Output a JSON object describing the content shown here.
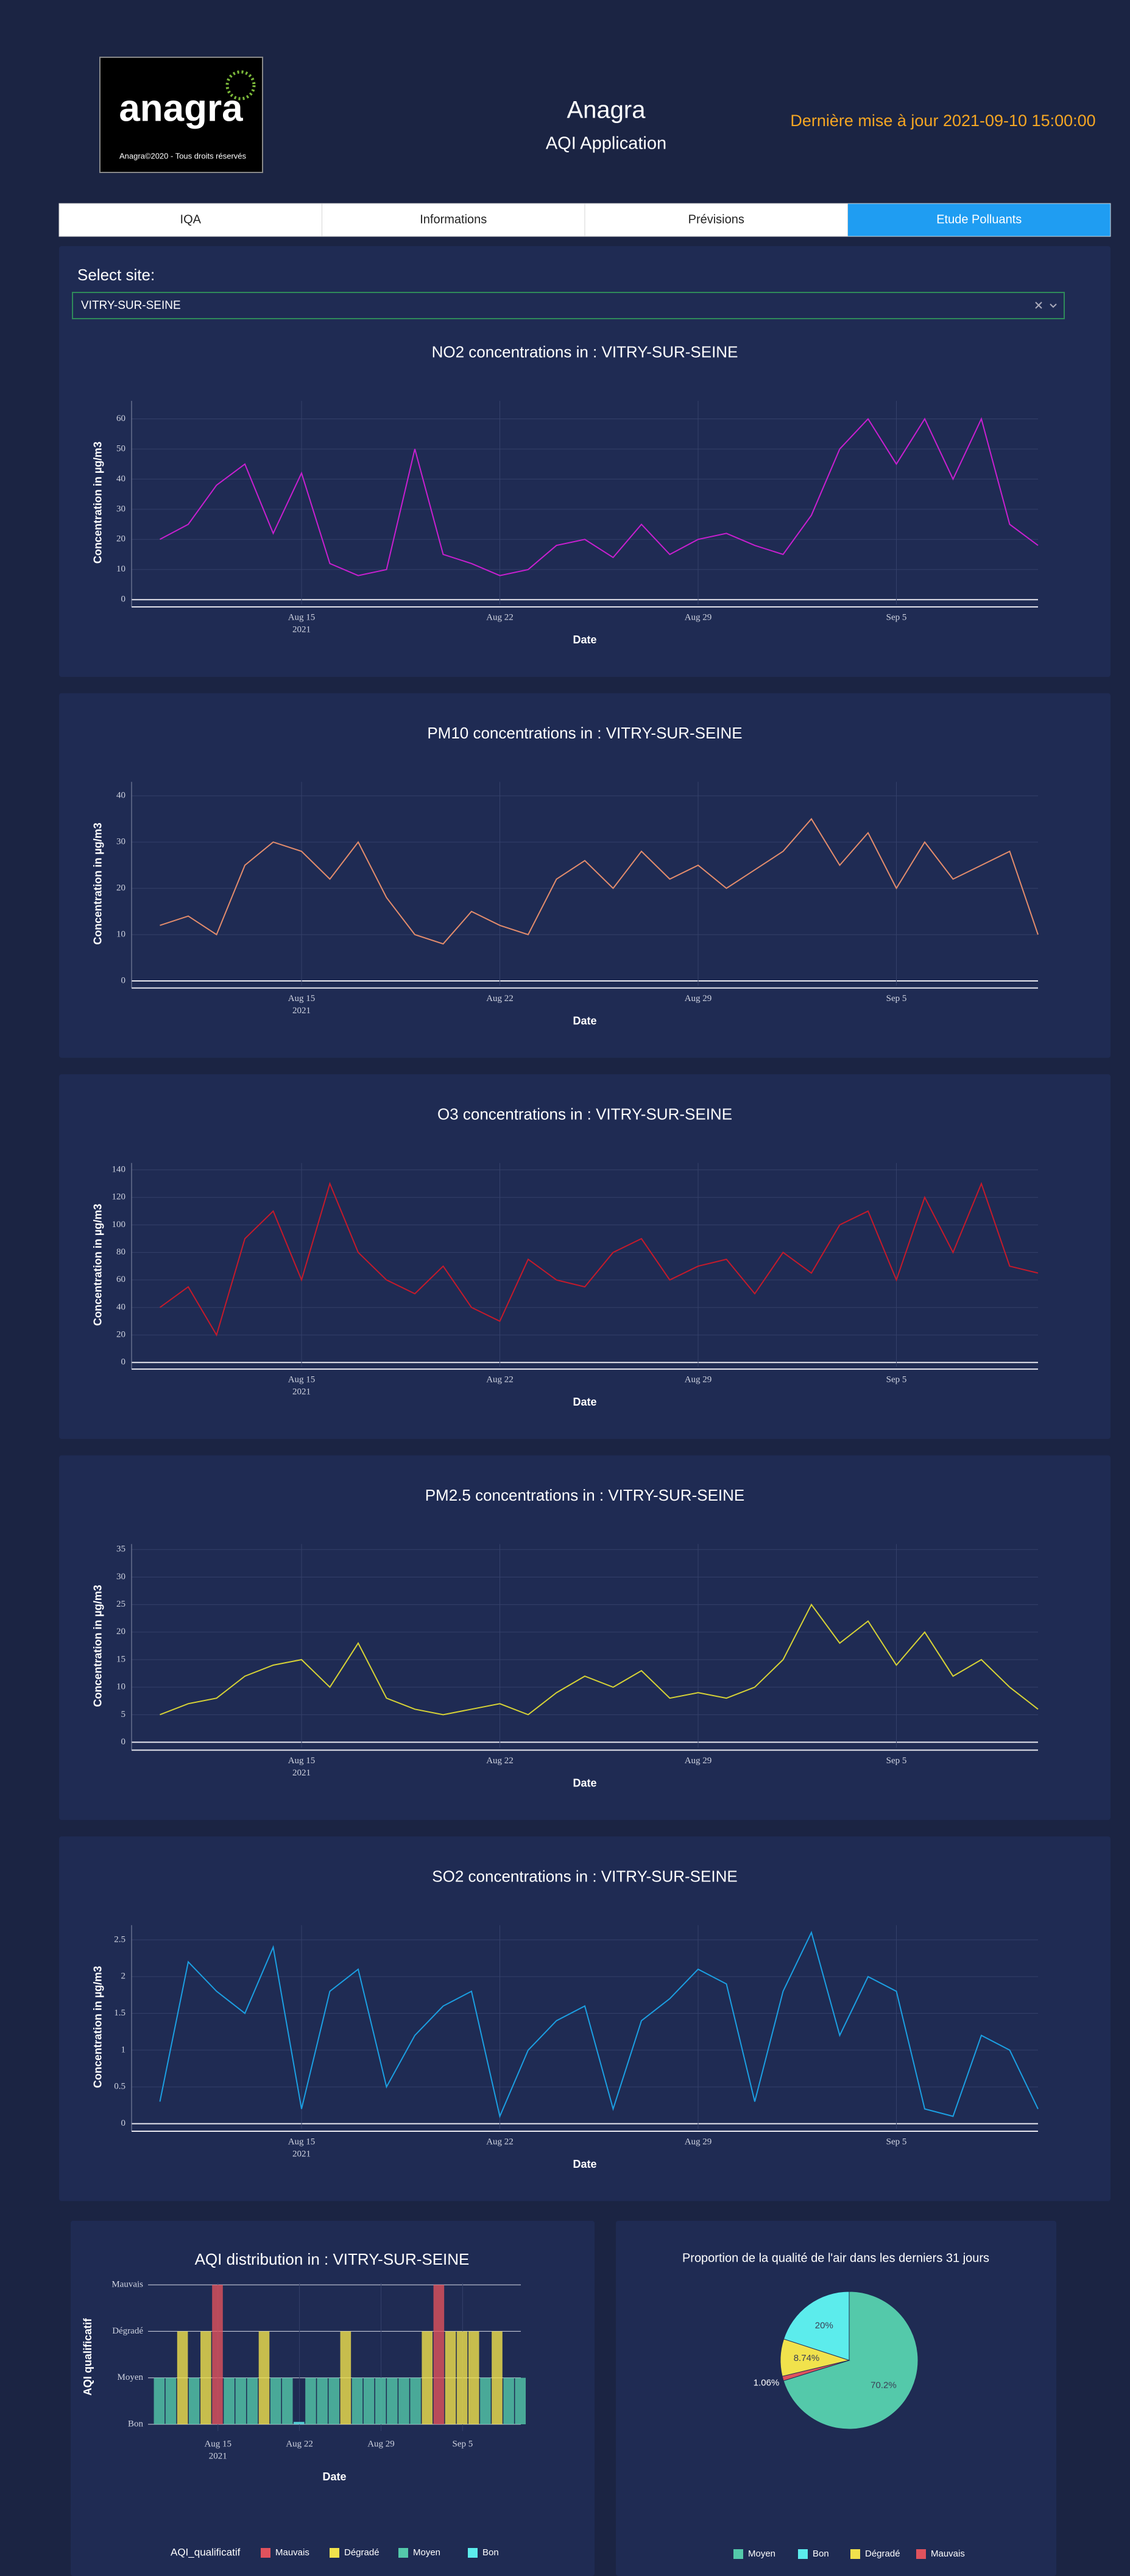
{
  "header": {
    "logo_text": "anagra",
    "logo_caption": "Anagra©2020 - Tous droits réservés",
    "title": "Anagra",
    "subtitle": "AQI Application",
    "last_update": "Dernière mise à jour 2021-09-10 15:00:00"
  },
  "tabs": [
    "IQA",
    "Informations",
    "Prévisions",
    "Etude Polluants"
  ],
  "active_tab": 3,
  "site_selector": {
    "label": "Select site:",
    "value": "VITRY-SUR-SEINE"
  },
  "chart_data": [
    {
      "type": "line",
      "title": "NO2 concentrations in : VITRY-SUR-SEINE",
      "xlabel": "Date",
      "ylabel": "Concentration in µg/m3",
      "color": "#c81fd0",
      "x": [
        "2021-08-10",
        "2021-08-11",
        "2021-08-12",
        "2021-08-13",
        "2021-08-14",
        "2021-08-15",
        "2021-08-16",
        "2021-08-17",
        "2021-08-18",
        "2021-08-19",
        "2021-08-20",
        "2021-08-21",
        "2021-08-22",
        "2021-08-23",
        "2021-08-24",
        "2021-08-25",
        "2021-08-26",
        "2021-08-27",
        "2021-08-28",
        "2021-08-29",
        "2021-08-30",
        "2021-08-31",
        "2021-09-01",
        "2021-09-02",
        "2021-09-03",
        "2021-09-04",
        "2021-09-05",
        "2021-09-06",
        "2021-09-07",
        "2021-09-08",
        "2021-09-09",
        "2021-09-10"
      ],
      "values": [
        20,
        25,
        38,
        45,
        22,
        42,
        12,
        8,
        10,
        50,
        15,
        12,
        8,
        10,
        18,
        20,
        14,
        25,
        15,
        20,
        22,
        18,
        15,
        28,
        50,
        60,
        45,
        60,
        40,
        60,
        25,
        18
      ],
      "xlim": [
        "2021-08-09",
        "2021-09-10"
      ],
      "ylim": [
        -1.6,
        66
      ],
      "xticks": [
        {
          "value": "2021-08-15",
          "label": "Aug 15"
        },
        {
          "value": "2021-08-22",
          "label": "Aug 22"
        },
        {
          "value": "2021-08-29",
          "label": "Aug 29"
        },
        {
          "value": "2021-09-05",
          "label": "Sep 5"
        }
      ],
      "xtick_year": "2021",
      "yticks": [
        0,
        10,
        20,
        30,
        40,
        50,
        60
      ],
      "grid": true
    },
    {
      "type": "line",
      "title": "PM10 concentrations in : VITRY-SUR-SEINE",
      "xlabel": "Date",
      "ylabel": "Concentration in µg/m3",
      "color": "#e38c6c",
      "x": [
        "2021-08-10",
        "2021-08-11",
        "2021-08-12",
        "2021-08-13",
        "2021-08-14",
        "2021-08-15",
        "2021-08-16",
        "2021-08-17",
        "2021-08-18",
        "2021-08-19",
        "2021-08-20",
        "2021-08-21",
        "2021-08-22",
        "2021-08-23",
        "2021-08-24",
        "2021-08-25",
        "2021-08-26",
        "2021-08-27",
        "2021-08-28",
        "2021-08-29",
        "2021-08-30",
        "2021-08-31",
        "2021-09-01",
        "2021-09-02",
        "2021-09-03",
        "2021-09-04",
        "2021-09-05",
        "2021-09-06",
        "2021-09-07",
        "2021-09-08",
        "2021-09-09",
        "2021-09-10"
      ],
      "values": [
        12,
        14,
        10,
        25,
        30,
        28,
        22,
        30,
        18,
        10,
        8,
        15,
        12,
        10,
        22,
        26,
        20,
        28,
        22,
        25,
        20,
        24,
        28,
        35,
        25,
        32,
        20,
        30,
        22,
        25,
        28,
        10
      ],
      "xlim": [
        "2021-08-09",
        "2021-09-10"
      ],
      "ylim": [
        -1,
        43
      ],
      "xticks": [
        {
          "value": "2021-08-15",
          "label": "Aug 15"
        },
        {
          "value": "2021-08-22",
          "label": "Aug 22"
        },
        {
          "value": "2021-08-29",
          "label": "Aug 29"
        },
        {
          "value": "2021-09-05",
          "label": "Sep 5"
        }
      ],
      "xtick_year": "2021",
      "yticks": [
        0,
        10,
        20,
        30,
        40
      ],
      "grid": true
    },
    {
      "type": "line",
      "title": "O3 concentrations in : VITRY-SUR-SEINE",
      "xlabel": "Date",
      "ylabel": "Concentration in µg/m3",
      "color": "#c41a2b",
      "x": [
        "2021-08-10",
        "2021-08-11",
        "2021-08-12",
        "2021-08-13",
        "2021-08-14",
        "2021-08-15",
        "2021-08-16",
        "2021-08-17",
        "2021-08-18",
        "2021-08-19",
        "2021-08-20",
        "2021-08-21",
        "2021-08-22",
        "2021-08-23",
        "2021-08-24",
        "2021-08-25",
        "2021-08-26",
        "2021-08-27",
        "2021-08-28",
        "2021-08-29",
        "2021-08-30",
        "2021-08-31",
        "2021-09-01",
        "2021-09-02",
        "2021-09-03",
        "2021-09-04",
        "2021-09-05",
        "2021-09-06",
        "2021-09-07",
        "2021-09-08",
        "2021-09-09",
        "2021-09-10"
      ],
      "values": [
        40,
        55,
        20,
        90,
        110,
        60,
        130,
        80,
        60,
        50,
        70,
        40,
        30,
        75,
        60,
        55,
        80,
        90,
        60,
        70,
        75,
        50,
        80,
        65,
        100,
        110,
        60,
        120,
        80,
        130,
        70,
        65
      ],
      "xlim": [
        "2021-08-09",
        "2021-09-10"
      ],
      "ylim": [
        -3,
        145
      ],
      "xticks": [
        {
          "value": "2021-08-15",
          "label": "Aug 15"
        },
        {
          "value": "2021-08-22",
          "label": "Aug 22"
        },
        {
          "value": "2021-08-29",
          "label": "Aug 29"
        },
        {
          "value": "2021-09-05",
          "label": "Sep 5"
        }
      ],
      "xtick_year": "2021",
      "yticks": [
        0,
        20,
        40,
        60,
        80,
        100,
        120,
        140
      ],
      "grid": true
    },
    {
      "type": "line",
      "title": "PM2.5 concentrations in : VITRY-SUR-SEINE",
      "xlabel": "Date",
      "ylabel": "Concentration in µg/m3",
      "color": "#d6d236",
      "x": [
        "2021-08-10",
        "2021-08-11",
        "2021-08-12",
        "2021-08-13",
        "2021-08-14",
        "2021-08-15",
        "2021-08-16",
        "2021-08-17",
        "2021-08-18",
        "2021-08-19",
        "2021-08-20",
        "2021-08-21",
        "2021-08-22",
        "2021-08-23",
        "2021-08-24",
        "2021-08-25",
        "2021-08-26",
        "2021-08-27",
        "2021-08-28",
        "2021-08-29",
        "2021-08-30",
        "2021-08-31",
        "2021-09-01",
        "2021-09-02",
        "2021-09-03",
        "2021-09-04",
        "2021-09-05",
        "2021-09-06",
        "2021-09-07",
        "2021-09-08",
        "2021-09-09",
        "2021-09-10"
      ],
      "values": [
        5,
        7,
        8,
        12,
        14,
        15,
        10,
        18,
        8,
        6,
        5,
        6,
        7,
        5,
        9,
        12,
        10,
        13,
        8,
        9,
        8,
        10,
        15,
        25,
        18,
        22,
        14,
        20,
        12,
        15,
        10,
        6
      ],
      "xlim": [
        "2021-08-09",
        "2021-09-10"
      ],
      "ylim": [
        -1,
        36
      ],
      "xticks": [
        {
          "value": "2021-08-15",
          "label": "Aug 15"
        },
        {
          "value": "2021-08-22",
          "label": "Aug 22"
        },
        {
          "value": "2021-08-29",
          "label": "Aug 29"
        },
        {
          "value": "2021-09-05",
          "label": "Sep 5"
        }
      ],
      "xtick_year": "2021",
      "yticks": [
        0,
        5,
        10,
        15,
        20,
        25,
        30,
        35
      ],
      "grid": true
    },
    {
      "type": "line",
      "title": "SO2 concentrations in : VITRY-SUR-SEINE",
      "xlabel": "Date",
      "ylabel": "Concentration in µg/m3",
      "color": "#1b9fe2",
      "x": [
        "2021-08-10",
        "2021-08-11",
        "2021-08-12",
        "2021-08-13",
        "2021-08-14",
        "2021-08-15",
        "2021-08-16",
        "2021-08-17",
        "2021-08-18",
        "2021-08-19",
        "2021-08-20",
        "2021-08-21",
        "2021-08-22",
        "2021-08-23",
        "2021-08-24",
        "2021-08-25",
        "2021-08-26",
        "2021-08-27",
        "2021-08-28",
        "2021-08-29",
        "2021-08-30",
        "2021-08-31",
        "2021-09-01",
        "2021-09-02",
        "2021-09-03",
        "2021-09-04",
        "2021-09-05",
        "2021-09-06",
        "2021-09-07",
        "2021-09-08",
        "2021-09-09",
        "2021-09-10"
      ],
      "values": [
        0.3,
        2.2,
        1.8,
        1.5,
        2.4,
        0.2,
        1.8,
        2.1,
        0.5,
        1.2,
        1.6,
        1.8,
        0.1,
        1.0,
        1.4,
        1.6,
        0.2,
        1.4,
        1.7,
        2.1,
        1.9,
        0.3,
        1.8,
        2.6,
        1.2,
        2.0,
        1.8,
        0.2,
        0.1,
        1.2,
        1.0,
        0.2
      ],
      "xlim": [
        "2021-08-09",
        "2021-09-10"
      ],
      "ylim": [
        -0.07,
        2.7
      ],
      "xticks": [
        {
          "value": "2021-08-15",
          "label": "Aug 15"
        },
        {
          "value": "2021-08-22",
          "label": "Aug 22"
        },
        {
          "value": "2021-08-29",
          "label": "Aug 29"
        },
        {
          "value": "2021-09-05",
          "label": "Sep 5"
        }
      ],
      "xtick_year": "2021",
      "yticks": [
        0,
        0.5,
        1,
        1.5,
        2,
        2.5
      ],
      "grid": true
    },
    {
      "type": "levels",
      "title": "AQI distribution in : VITRY-SUR-SEINE",
      "xlabel": "Date",
      "ylabel": "AQI qualificatif",
      "levels": [
        "Bon",
        "Moyen",
        "Dégradé",
        "Mauvais"
      ],
      "x": [
        "2021-08-10",
        "2021-08-11",
        "2021-08-12",
        "2021-08-13",
        "2021-08-14",
        "2021-08-15",
        "2021-08-16",
        "2021-08-17",
        "2021-08-18",
        "2021-08-19",
        "2021-08-20",
        "2021-08-21",
        "2021-08-22",
        "2021-08-23",
        "2021-08-24",
        "2021-08-25",
        "2021-08-26",
        "2021-08-27",
        "2021-08-28",
        "2021-08-29",
        "2021-08-30",
        "2021-08-31",
        "2021-09-01",
        "2021-09-02",
        "2021-09-03",
        "2021-09-04",
        "2021-09-05",
        "2021-09-06",
        "2021-09-07",
        "2021-09-08",
        "2021-09-09",
        "2021-09-10"
      ],
      "values": [
        "Moyen",
        "Moyen",
        "Dégradé",
        "Moyen",
        "Dégradé",
        "Mauvais",
        "Moyen",
        "Moyen",
        "Moyen",
        "Dégradé",
        "Moyen",
        "Moyen",
        "Bon",
        "Moyen",
        "Moyen",
        "Moyen",
        "Dégradé",
        "Moyen",
        "Moyen",
        "Moyen",
        "Moyen",
        "Moyen",
        "Moyen",
        "Dégradé",
        "Mauvais",
        "Dégradé",
        "Dégradé",
        "Dégradé",
        "Moyen",
        "Dégradé",
        "Moyen",
        "Moyen"
      ],
      "xlim": [
        "2021-08-09",
        "2021-09-10"
      ],
      "xticks": [
        {
          "value": "2021-08-15",
          "label": "Aug 15"
        },
        {
          "value": "2021-08-22",
          "label": "Aug 22"
        },
        {
          "value": "2021-08-29",
          "label": "Aug 29"
        },
        {
          "value": "2021-09-05",
          "label": "Sep 5"
        }
      ],
      "xtick_year": "2021",
      "legend_title": "AQI_qualificatif",
      "legend": [
        {
          "name": "Mauvais",
          "color": "#e0525d"
        },
        {
          "name": "Dégradé",
          "color": "#f1e24c"
        },
        {
          "name": "Moyen",
          "color": "#54c9aa"
        },
        {
          "name": "Bon",
          "color": "#5cecec"
        }
      ]
    },
    {
      "type": "pie",
      "title": "Proportion de la qualité de l'air dans les derniers 31 jours",
      "labels": [
        "Moyen",
        "Bon",
        "Dégradé",
        "Mauvais"
      ],
      "values": [
        70.2,
        20,
        8.74,
        1.06
      ],
      "value_labels": [
        "70.2%",
        "20%",
        "8.74%",
        "1.06%"
      ],
      "colors": [
        "#54c9aa",
        "#5cecec",
        "#f1e24c",
        "#e0525d"
      ]
    }
  ]
}
